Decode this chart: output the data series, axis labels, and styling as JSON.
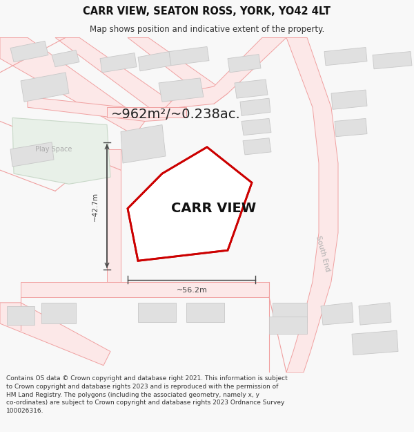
{
  "title_line1": "CARR VIEW, SEATON ROSS, YORK, YO42 4LT",
  "title_line2": "Map shows position and indicative extent of the property.",
  "area_label": "~962m²/~0.238ac.",
  "property_label": "CARR VIEW",
  "dim_width": "~56.2m",
  "dim_height": "~42.7m",
  "road_label": "South End",
  "play_space_label": "Play Space",
  "footer_text": "Contains OS data © Crown copyright and database right 2021. This information is subject to Crown copyright and database rights 2023 and is reproduced with the permission of HM Land Registry. The polygons (including the associated geometry, namely x, y co-ordinates) are subject to Crown copyright and database rights 2023 Ordnance Survey 100026316.",
  "bg_color": "#f8f8f8",
  "map_bg": "#ffffff",
  "road_stroke": "#f0a0a0",
  "road_fill": "#fce8e8",
  "property_outline_color": "#cc0000",
  "building_fill": "#e0e0e0",
  "building_outline": "#c8c8c8",
  "green_fill": "#e8f0e8",
  "green_outline": "#c8d8c8",
  "dim_color": "#444444",
  "text_color": "#222222",
  "road_text_color": "#aaaaaa"
}
